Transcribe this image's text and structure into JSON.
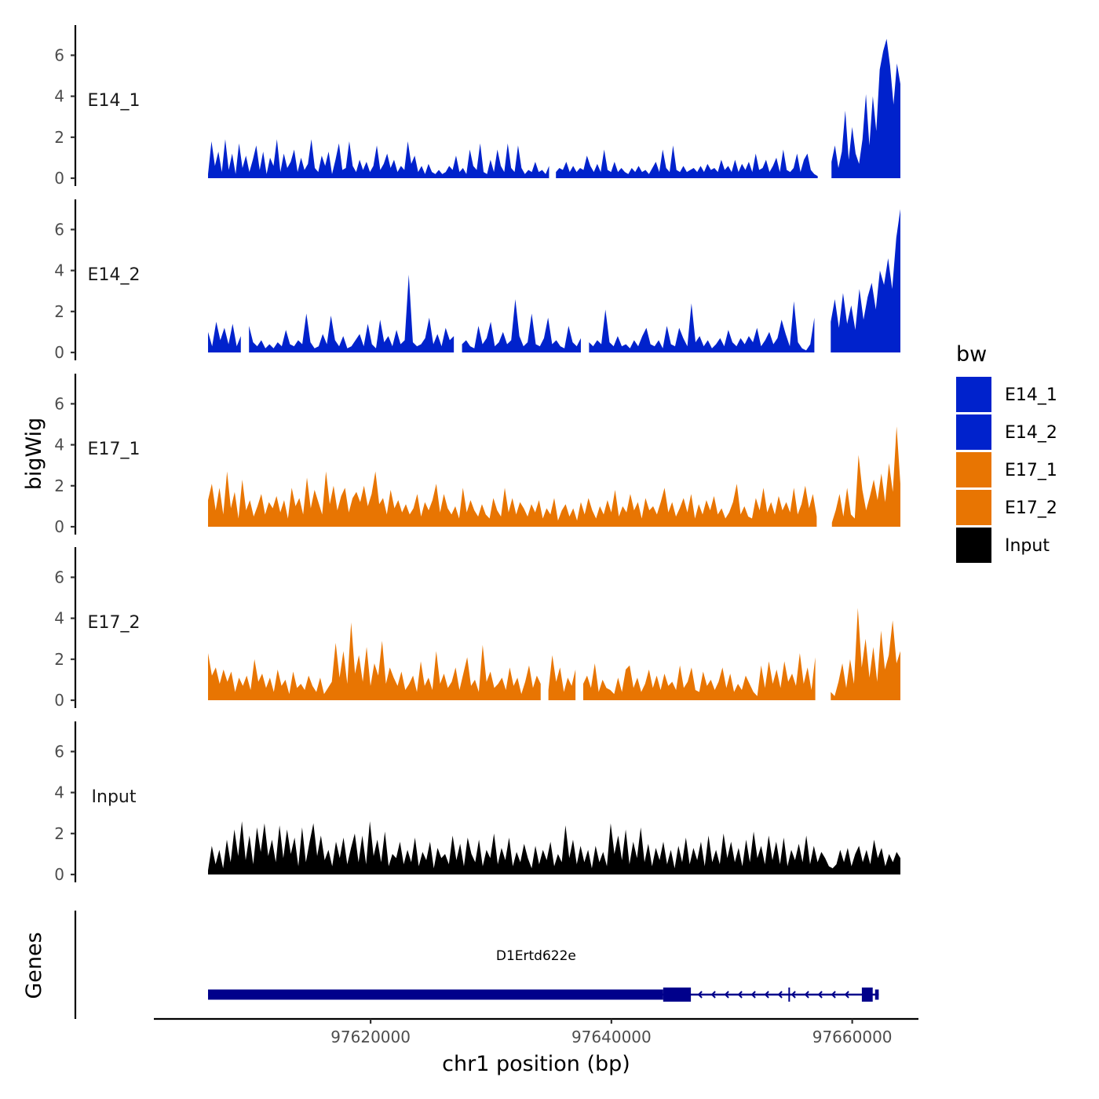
{
  "chart_data": {
    "type": "area",
    "title": "",
    "xlabel": "chr1 position (bp)",
    "ylabel": "bigWig",
    "genes_label": "Genes",
    "xlim": [
      97602000,
      97665500
    ],
    "x_ticks": [
      97620000,
      97640000,
      97660000
    ],
    "x_tick_labels": [
      "97620000",
      "97640000",
      "97660000"
    ],
    "ylim": [
      0,
      7.5
    ],
    "y_ticks": [
      0,
      2,
      4,
      6
    ],
    "y_tick_labels": [
      "0",
      "2",
      "4",
      "6"
    ],
    "region": [
      97606500,
      97664000
    ],
    "legend": {
      "title": "bw",
      "entries": [
        {
          "label": "E14_1",
          "color": "#0022CC"
        },
        {
          "label": "E14_2",
          "color": "#0022CC"
        },
        {
          "label": "E17_1",
          "color": "#E87502"
        },
        {
          "label": "E17_2",
          "color": "#E87502"
        },
        {
          "label": "Input",
          "color": "#000000"
        }
      ]
    },
    "series": [
      {
        "name": "E14_1",
        "color": "#0022CC",
        "gaps": [
          [
            97635000,
            97635300
          ],
          [
            97657300,
            97658200
          ]
        ],
        "values": [
          0.2,
          1.8,
          0.6,
          1.3,
          0.3,
          1.9,
          0.4,
          1.2,
          0.2,
          1.7,
          0.5,
          1.1,
          0.3,
          0.9,
          1.6,
          0.4,
          1.3,
          0.2,
          1.0,
          0.6,
          1.9,
          0.3,
          1.2,
          0.5,
          0.8,
          1.4,
          0.3,
          1.0,
          0.4,
          0.7,
          1.9,
          0.5,
          0.3,
          1.1,
          0.6,
          1.3,
          0.2,
          0.9,
          1.7,
          0.4,
          0.5,
          1.8,
          0.6,
          0.3,
          0.9,
          0.4,
          0.8,
          0.3,
          0.6,
          1.6,
          0.4,
          0.7,
          1.2,
          0.5,
          0.9,
          0.3,
          0.6,
          0.4,
          1.8,
          0.7,
          1.1,
          0.3,
          0.6,
          0.2,
          0.7,
          0.3,
          0.2,
          0.4,
          0.2,
          0.3,
          0.6,
          0.4,
          1.1,
          0.3,
          0.5,
          0.2,
          1.4,
          0.6,
          0.4,
          1.7,
          0.3,
          0.2,
          0.9,
          0.3,
          1.4,
          0.6,
          0.3,
          1.7,
          0.5,
          0.3,
          1.6,
          0.5,
          0.2,
          0.4,
          0.3,
          0.8,
          0.3,
          0.4,
          0.2,
          0.6,
          0.4,
          0.3,
          0.5,
          0.4,
          0.8,
          0.3,
          0.6,
          0.3,
          0.5,
          0.4,
          1.1,
          0.6,
          0.3,
          0.7,
          0.3,
          1.4,
          0.4,
          0.3,
          0.8,
          0.3,
          0.5,
          0.3,
          0.2,
          0.5,
          0.3,
          0.6,
          0.3,
          0.4,
          0.2,
          0.5,
          0.8,
          0.3,
          1.4,
          0.5,
          0.3,
          1.6,
          0.4,
          0.3,
          0.6,
          0.3,
          0.4,
          0.5,
          0.3,
          0.6,
          0.3,
          0.7,
          0.4,
          0.5,
          0.3,
          0.9,
          0.4,
          0.6,
          0.3,
          0.9,
          0.3,
          0.7,
          0.4,
          0.8,
          0.3,
          1.2,
          0.4,
          0.5,
          0.9,
          0.3,
          0.6,
          1.0,
          0.3,
          1.4,
          0.4,
          0.3,
          0.5,
          1.2,
          0.3,
          0.9,
          1.2,
          0.4,
          0.2,
          0.1,
          0.6,
          1.2,
          2.3,
          0.8,
          1.6,
          0.5,
          1.3,
          3.3,
          0.9,
          2.5,
          1.2,
          0.7,
          1.9,
          4.1,
          1.6,
          4.0,
          2.3,
          5.3,
          6.2,
          6.8,
          5.5,
          3.6,
          5.6,
          4.6
        ]
      },
      {
        "name": "E14_2",
        "color": "#0022CC",
        "gaps": [
          [
            97609500,
            97609800
          ],
          [
            97627200,
            97627500
          ],
          [
            97637500,
            97638000
          ],
          [
            97657000,
            97658100
          ]
        ],
        "values": [
          1.0,
          0.3,
          1.5,
          0.6,
          1.2,
          0.4,
          1.4,
          0.3,
          0.8,
          0.2,
          1.3,
          0.5,
          0.3,
          0.6,
          0.2,
          0.4,
          0.2,
          0.5,
          0.3,
          1.1,
          0.4,
          0.3,
          0.6,
          0.4,
          1.9,
          0.5,
          0.2,
          0.3,
          0.9,
          0.4,
          1.8,
          0.6,
          0.3,
          0.8,
          0.2,
          0.3,
          0.6,
          0.9,
          0.3,
          1.4,
          0.4,
          0.2,
          1.6,
          0.5,
          0.8,
          0.3,
          1.1,
          0.4,
          0.6,
          3.8,
          0.5,
          0.3,
          0.4,
          0.7,
          1.7,
          0.4,
          0.9,
          0.3,
          1.2,
          0.6,
          0.8,
          1.1,
          0.4,
          0.6,
          0.3,
          0.2,
          1.3,
          0.4,
          0.7,
          1.5,
          0.3,
          0.5,
          1.0,
          0.4,
          0.6,
          2.6,
          0.8,
          0.3,
          0.5,
          1.9,
          0.4,
          0.3,
          0.7,
          1.7,
          0.4,
          0.6,
          0.3,
          0.2,
          1.3,
          0.5,
          0.3,
          0.7,
          0.2,
          0.5,
          0.3,
          0.6,
          0.4,
          2.1,
          0.5,
          0.3,
          0.8,
          0.3,
          0.4,
          0.2,
          0.6,
          0.3,
          0.8,
          1.2,
          0.4,
          0.3,
          0.6,
          0.2,
          1.3,
          0.4,
          0.3,
          1.2,
          0.7,
          0.3,
          2.4,
          0.5,
          0.8,
          0.3,
          0.6,
          0.2,
          0.4,
          0.7,
          0.3,
          1.1,
          0.5,
          0.3,
          0.7,
          0.4,
          0.8,
          0.5,
          1.2,
          0.3,
          0.6,
          1.0,
          0.4,
          0.7,
          1.6,
          0.9,
          0.3,
          2.5,
          0.5,
          0.2,
          0.1,
          0.4,
          1.7,
          2.8,
          1.1,
          2.3,
          1.5,
          2.6,
          1.2,
          2.9,
          1.4,
          2.3,
          1.1,
          3.1,
          1.6,
          2.7,
          3.4,
          2.1,
          4.0,
          3.3,
          4.6,
          3.1,
          5.6,
          7.0
        ]
      },
      {
        "name": "E17_1",
        "color": "#E87502",
        "gaps": [
          [
            97634700,
            97634900
          ],
          [
            97657300,
            97658100
          ]
        ],
        "values": [
          1.3,
          2.1,
          0.8,
          1.9,
          0.6,
          2.7,
          0.9,
          1.7,
          0.4,
          2.3,
          0.8,
          1.3,
          0.5,
          1.0,
          1.6,
          0.6,
          1.2,
          0.9,
          1.5,
          0.7,
          1.3,
          0.4,
          1.9,
          1.0,
          1.4,
          0.6,
          2.4,
          0.9,
          1.8,
          1.2,
          0.6,
          2.7,
          1.1,
          2.0,
          0.8,
          1.5,
          1.9,
          0.7,
          1.4,
          1.7,
          1.2,
          2.0,
          1.0,
          1.6,
          2.7,
          1.1,
          1.4,
          0.6,
          1.8,
          0.9,
          1.3,
          0.7,
          1.1,
          0.6,
          0.9,
          1.6,
          0.5,
          1.2,
          0.8,
          1.3,
          2.1,
          0.7,
          1.6,
          0.9,
          0.6,
          1.0,
          0.4,
          1.9,
          0.7,
          1.3,
          0.8,
          0.5,
          1.1,
          0.6,
          0.4,
          1.4,
          0.8,
          0.5,
          1.9,
          0.7,
          1.4,
          0.6,
          1.2,
          0.9,
          0.5,
          1.1,
          0.7,
          1.3,
          0.4,
          0.9,
          0.6,
          1.4,
          0.3,
          0.8,
          1.1,
          0.5,
          0.9,
          0.3,
          1.2,
          0.6,
          1.4,
          0.8,
          0.4,
          1.0,
          0.6,
          1.3,
          0.7,
          1.8,
          0.5,
          1.0,
          0.7,
          1.6,
          0.8,
          1.2,
          0.4,
          1.4,
          0.8,
          1.0,
          0.6,
          1.2,
          1.9,
          0.7,
          1.2,
          0.5,
          0.9,
          1.4,
          0.7,
          1.6,
          0.4,
          1.1,
          0.6,
          1.3,
          0.8,
          1.5,
          0.6,
          0.9,
          0.4,
          0.7,
          1.2,
          2.1,
          0.6,
          1.0,
          0.5,
          0.4,
          1.4,
          0.8,
          1.9,
          0.7,
          1.2,
          0.6,
          1.5,
          0.8,
          1.2,
          0.7,
          1.9,
          0.6,
          1.1,
          2.0,
          0.9,
          1.6,
          0.5,
          1.3,
          0.7,
          0.3,
          0.2,
          0.8,
          1.6,
          0.5,
          1.9,
          0.6,
          0.4,
          3.5,
          1.8,
          0.8,
          1.5,
          2.3,
          1.3,
          2.6,
          1.2,
          3.1,
          1.7,
          4.9,
          2.1
        ]
      },
      {
        "name": "E17_2",
        "color": "#E87502",
        "gaps": [
          [
            97634400,
            97634700
          ],
          [
            97637100,
            97637600
          ],
          [
            97657000,
            97658200
          ]
        ],
        "values": [
          2.3,
          1.2,
          1.6,
          0.8,
          1.5,
          0.9,
          1.4,
          0.4,
          1.1,
          0.7,
          1.2,
          0.5,
          2.0,
          0.9,
          1.3,
          0.6,
          1.1,
          0.4,
          1.5,
          0.7,
          1.0,
          0.3,
          1.4,
          0.6,
          0.8,
          0.5,
          1.2,
          0.7,
          0.4,
          1.1,
          0.3,
          0.6,
          0.9,
          2.8,
          1.1,
          2.4,
          0.8,
          3.8,
          1.3,
          2.2,
          0.9,
          2.6,
          0.7,
          1.8,
          1.2,
          2.9,
          0.8,
          1.6,
          1.1,
          0.7,
          1.4,
          0.5,
          0.8,
          1.2,
          0.4,
          1.9,
          0.7,
          1.1,
          0.5,
          2.4,
          0.8,
          1.3,
          0.6,
          0.9,
          1.6,
          0.5,
          1.3,
          2.1,
          0.7,
          1.0,
          0.4,
          2.7,
          0.9,
          1.4,
          0.6,
          0.8,
          1.1,
          0.5,
          1.6,
          0.7,
          1.1,
          0.3,
          0.9,
          1.7,
          0.6,
          1.2,
          0.8,
          1.4,
          0.5,
          2.2,
          0.9,
          1.6,
          0.4,
          1.1,
          0.7,
          1.5,
          0.3,
          0.8,
          1.2,
          0.6,
          1.8,
          0.4,
          1.0,
          0.6,
          0.5,
          0.3,
          1.1,
          0.4,
          1.5,
          1.7,
          0.6,
          1.1,
          0.4,
          0.8,
          1.5,
          0.6,
          1.2,
          0.5,
          1.3,
          0.7,
          0.9,
          0.5,
          1.7,
          0.6,
          0.9,
          1.6,
          0.5,
          0.4,
          1.4,
          0.7,
          1.0,
          0.5,
          0.9,
          1.6,
          0.6,
          1.3,
          0.4,
          0.8,
          0.5,
          1.2,
          0.8,
          0.4,
          0.2,
          1.7,
          0.6,
          1.9,
          0.8,
          1.5,
          0.6,
          1.9,
          0.9,
          1.3,
          0.7,
          2.3,
          0.8,
          1.6,
          0.5,
          2.1,
          1.0,
          1.6,
          0.7,
          0.4,
          0.2,
          0.9,
          1.8,
          0.6,
          2.0,
          0.8,
          4.5,
          1.6,
          3.0,
          1.1,
          2.6,
          0.9,
          3.4,
          1.5,
          2.2,
          3.9,
          1.8,
          2.4
        ]
      },
      {
        "name": "Input",
        "color": "#000000",
        "gaps": [],
        "values": [
          0.2,
          1.4,
          0.5,
          1.2,
          0.3,
          1.7,
          0.6,
          2.2,
          0.9,
          2.6,
          0.7,
          1.9,
          0.5,
          2.3,
          1.1,
          2.5,
          0.9,
          1.7,
          0.6,
          2.4,
          0.8,
          2.2,
          1.0,
          1.8,
          0.4,
          2.3,
          0.6,
          1.6,
          2.5,
          0.9,
          1.9,
          0.7,
          1.2,
          0.4,
          1.6,
          0.8,
          1.8,
          0.5,
          1.3,
          2.0,
          0.6,
          1.9,
          0.5,
          2.6,
          0.9,
          1.7,
          0.6,
          2.1,
          0.4,
          1.0,
          0.8,
          1.6,
          0.5,
          1.2,
          0.6,
          1.8,
          0.4,
          1.1,
          0.7,
          1.6,
          0.3,
          1.3,
          0.8,
          1.0,
          0.5,
          1.9,
          0.7,
          1.5,
          0.4,
          1.8,
          1.0,
          0.6,
          1.7,
          0.4,
          1.2,
          0.8,
          2.0,
          0.5,
          1.3,
          0.7,
          1.8,
          0.4,
          1.1,
          0.6,
          1.5,
          0.8,
          0.3,
          1.4,
          0.5,
          1.2,
          0.7,
          1.6,
          0.4,
          1.0,
          0.6,
          2.4,
          0.8,
          1.7,
          0.5,
          1.4,
          0.6,
          1.2,
          0.3,
          1.4,
          0.6,
          1.1,
          0.4,
          2.5,
          1.0,
          1.9,
          0.7,
          2.2,
          0.5,
          1.6,
          0.8,
          2.3,
          0.6,
          1.5,
          0.4,
          1.3,
          0.7,
          1.6,
          0.5,
          1.2,
          0.3,
          1.4,
          0.6,
          1.8,
          0.5,
          1.3,
          0.7,
          1.6,
          0.4,
          1.9,
          0.6,
          1.2,
          0.5,
          2.0,
          0.8,
          1.6,
          0.6,
          1.3,
          0.4,
          1.7,
          0.6,
          2.1,
          0.8,
          1.4,
          0.5,
          1.9,
          0.7,
          1.6,
          0.5,
          1.8,
          0.4,
          1.2,
          0.7,
          1.5,
          0.6,
          1.9,
          0.5,
          1.4,
          0.6,
          1.1,
          0.8,
          0.4,
          0.3,
          0.5,
          1.2,
          0.6,
          1.3,
          0.4,
          1.0,
          1.4,
          0.6,
          1.2,
          0.5,
          1.7,
          0.8,
          1.3,
          0.4,
          1.0,
          0.6,
          1.1,
          0.8
        ]
      }
    ],
    "genes": [
      {
        "name": "D1Ertd622e",
        "strand": "-",
        "color": "#00008B",
        "start": 97606500,
        "end": 97662200,
        "exons": [
          [
            97606500,
            97644300,
            "utr"
          ],
          [
            97644300,
            97646600,
            "cds"
          ],
          [
            97654700,
            97654800,
            "cds"
          ],
          [
            97660800,
            97661700,
            "cds"
          ],
          [
            97661900,
            97662200,
            "utr"
          ]
        ]
      }
    ]
  }
}
